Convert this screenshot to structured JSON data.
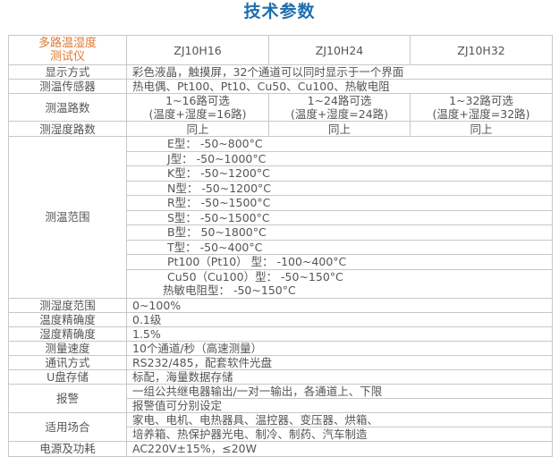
{
  "title": "技术参数",
  "header": {
    "label": "多路温湿度\n测试仪",
    "label_line1": "多路温湿度",
    "label_line2": "测试仪",
    "models": [
      "ZJ10H16",
      "ZJ10H24",
      "ZJ10H32"
    ]
  },
  "rows": {
    "display": {
      "label": "显示方式",
      "value": "彩色液晶，触摸屏，32个通道可以同时显示于一个界面"
    },
    "sensor": {
      "label": "测温传感器",
      "value": "热电偶、Pt100、Pt10、Cu50、Cu100、热敏电阻"
    },
    "temp_channels": {
      "label": "测温路数",
      "values": [
        [
          "1~16路可选",
          "(温度+湿度=16路)"
        ],
        [
          "1~24路可选",
          "(温度+湿度=24路)"
        ],
        [
          "1~32路可选",
          "(温度+湿度=32路)"
        ]
      ]
    },
    "humid_channels": {
      "label": "测湿度路数",
      "values": [
        "同上",
        "同上",
        "同上"
      ]
    },
    "temp_range": {
      "label": "测温范围",
      "values": [
        "E型： -50~800°C",
        "J型： -50~1000°C",
        "K型： -50~1200°C",
        "N型： -50~1200°C",
        "R型： -50~1500°C",
        "S型： -50~1500°C",
        "B型： 50~1800°C",
        "T型： -50~400°C",
        "Pt100（Pt10） 型： -100~400°C",
        "Cu50（Cu100）型： -50~150°C",
        "热敏电阻型： -50~150°C"
      ]
    },
    "humid_range": {
      "label": "测湿度范围",
      "value": "0~100%"
    },
    "temp_accuracy": {
      "label": "温度精确度",
      "value": "0.1级"
    },
    "humid_accuracy": {
      "label": "湿度精确度",
      "value": "1.5%"
    },
    "speed": {
      "label": "测量速度",
      "value": "10个通道/秒（高速测量）"
    },
    "comm": {
      "label": "通讯方式",
      "value": "RS232/485，配套软件光盘"
    },
    "usb": {
      "label": "U盘存储",
      "value": "标配，海量数据存储"
    },
    "alarm": {
      "label": "报警",
      "lines": [
        "一组公共继电器输出/一对一输出，各通道上、下限",
        "报警值可分别设定"
      ]
    },
    "applications": {
      "label": "适用场合",
      "lines": [
        "家电、电机、电热器具、温控器、变压器、烘箱、",
        "培养箱、热保护器光电、制冷、制药、汽车制造"
      ]
    },
    "power": {
      "label": "电源及功耗",
      "value": "AC220V±15%，≤20W"
    }
  }
}
